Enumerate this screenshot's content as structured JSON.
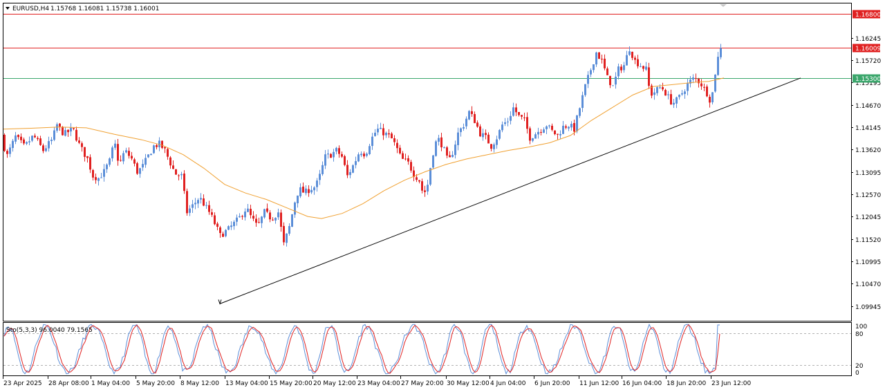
{
  "header": {
    "symbol": "EURUSD,H4",
    "ohlc": "1.15768 1.16081 1.15738 1.16001"
  },
  "chart_data": [
    {
      "type": "candlestick",
      "symbol": "EURUSD",
      "timeframe": "H4",
      "ylim": [
        1.096,
        1.1705
      ],
      "y_ticks": [
        "1.16245",
        "1.15720",
        "1.15195",
        "1.14670",
        "1.14145",
        "1.13620",
        "1.13095",
        "1.12570",
        "1.12045",
        "1.11520",
        "1.10995",
        "1.10470",
        "1.09945"
      ],
      "x_ticks": [
        "23 Apr 2025",
        "28 Apr 08:00",
        "1 May 04:00",
        "5 May 20:00",
        "8 May 12:00",
        "13 May 04:00",
        "15 May 20:00",
        "20 May 12:00",
        "23 May 04:00",
        "27 May 20:00",
        "30 May 12:00",
        "4 Jun 04:00",
        "6 Jun 20:00",
        "11 Jun 12:00",
        "16 Jun 04:00",
        "18 Jun 20:00",
        "23 Jun 12:00"
      ],
      "close_path": [
        [
          0,
          1.1395
        ],
        [
          10,
          1.1348
        ],
        [
          22,
          1.1392
        ],
        [
          35,
          1.1368
        ],
        [
          48,
          1.1395
        ],
        [
          62,
          1.136
        ],
        [
          75,
          1.1385
        ],
        [
          82,
          1.142
        ],
        [
          92,
          1.1398
        ],
        [
          105,
          1.141
        ],
        [
          115,
          1.137
        ],
        [
          126,
          1.134
        ],
        [
          134,
          1.13
        ],
        [
          142,
          1.1295
        ],
        [
          150,
          1.131
        ],
        [
          158,
          1.1335
        ],
        [
          165,
          1.138
        ],
        [
          172,
          1.1325
        ],
        [
          180,
          1.136
        ],
        [
          190,
          1.134
        ],
        [
          198,
          1.131
        ],
        [
          205,
          1.132
        ],
        [
          215,
          1.135
        ],
        [
          222,
          1.137
        ],
        [
          230,
          1.1375
        ],
        [
          238,
          1.136
        ],
        [
          246,
          1.133
        ],
        [
          253,
          1.1305
        ],
        [
          262,
          1.13
        ],
        [
          270,
          1.1215
        ],
        [
          278,
          1.123
        ],
        [
          288,
          1.125
        ],
        [
          296,
          1.123
        ],
        [
          304,
          1.121
        ],
        [
          318,
          1.116
        ],
        [
          330,
          1.1175
        ],
        [
          345,
          1.12
        ],
        [
          356,
          1.1225
        ],
        [
          362,
          1.1205
        ],
        [
          372,
          1.118
        ],
        [
          382,
          1.1215
        ],
        [
          392,
          1.12
        ],
        [
          402,
          1.1215
        ],
        [
          410,
          1.114
        ],
        [
          418,
          1.118
        ],
        [
          426,
          1.124
        ],
        [
          432,
          1.127
        ],
        [
          440,
          1.126
        ],
        [
          448,
          1.127
        ],
        [
          456,
          1.1275
        ],
        [
          462,
          1.13
        ],
        [
          470,
          1.1345
        ],
        [
          478,
          1.135
        ],
        [
          486,
          1.136
        ],
        [
          494,
          1.1345
        ],
        [
          502,
          1.13
        ],
        [
          512,
          1.133
        ],
        [
          520,
          1.136
        ],
        [
          528,
          1.135
        ],
        [
          536,
          1.1385
        ],
        [
          545,
          1.141
        ],
        [
          556,
          1.14
        ],
        [
          565,
          1.139
        ],
        [
          572,
          1.137
        ],
        [
          580,
          1.134
        ],
        [
          590,
          1.133
        ],
        [
          598,
          1.1305
        ],
        [
          606,
          1.129
        ],
        [
          612,
          1.1255
        ],
        [
          618,
          1.128
        ],
        [
          625,
          1.135
        ],
        [
          632,
          1.139
        ],
        [
          640,
          1.137
        ],
        [
          648,
          1.133
        ],
        [
          655,
          1.136
        ],
        [
          662,
          1.14
        ],
        [
          670,
          1.142
        ],
        [
          678,
          1.145
        ],
        [
          686,
          1.143
        ],
        [
          694,
          1.14
        ],
        [
          702,
          1.139
        ],
        [
          710,
          1.137
        ],
        [
          718,
          1.139
        ],
        [
          726,
          1.142
        ],
        [
          734,
          1.143
        ],
        [
          742,
          1.146
        ],
        [
          750,
          1.144
        ],
        [
          758,
          1.143
        ],
        [
          766,
          1.139
        ],
        [
          774,
          1.14
        ],
        [
          782,
          1.141
        ],
        [
          790,
          1.142
        ],
        [
          798,
          1.1405
        ],
        [
          806,
          1.1395
        ],
        [
          814,
          1.1415
        ],
        [
          822,
          1.142
        ],
        [
          830,
          1.141
        ],
        [
          838,
          1.146
        ],
        [
          846,
          1.151
        ],
        [
          854,
          1.155
        ],
        [
          862,
          1.159
        ],
        [
          870,
          1.157
        ],
        [
          878,
          1.153
        ],
        [
          886,
          1.151
        ],
        [
          894,
          1.155
        ],
        [
          902,
          1.156
        ],
        [
          910,
          1.16
        ],
        [
          918,
          1.157
        ],
        [
          926,
          1.156
        ],
        [
          934,
          1.155
        ],
        [
          940,
          1.149
        ],
        [
          948,
          1.15
        ],
        [
          956,
          1.151
        ],
        [
          964,
          1.149
        ],
        [
          972,
          1.147
        ],
        [
          980,
          1.148
        ],
        [
          988,
          1.15
        ],
        [
          996,
          1.152
        ],
        [
          1004,
          1.153
        ],
        [
          1012,
          1.152
        ],
        [
          1018,
          1.1505
        ],
        [
          1024,
          1.149
        ],
        [
          1028,
          1.147
        ],
        [
          1032,
          1.152
        ],
        [
          1036,
          1.1565
        ],
        [
          1040,
          1.159
        ],
        [
          1043,
          1.16
        ]
      ],
      "ma_path": [
        [
          0,
          1.141
        ],
        [
          40,
          1.1412
        ],
        [
          80,
          1.1415
        ],
        [
          120,
          1.1413
        ],
        [
          160,
          1.1398
        ],
        [
          200,
          1.1385
        ],
        [
          230,
          1.1372
        ],
        [
          260,
          1.135
        ],
        [
          290,
          1.1318
        ],
        [
          320,
          1.128
        ],
        [
          350,
          1.126
        ],
        [
          380,
          1.1245
        ],
        [
          410,
          1.1225
        ],
        [
          440,
          1.1205
        ],
        [
          460,
          1.12
        ],
        [
          490,
          1.1212
        ],
        [
          520,
          1.1235
        ],
        [
          550,
          1.1265
        ],
        [
          580,
          1.129
        ],
        [
          610,
          1.131
        ],
        [
          640,
          1.1327
        ],
        [
          670,
          1.134
        ],
        [
          700,
          1.135
        ],
        [
          730,
          1.136
        ],
        [
          760,
          1.1368
        ],
        [
          790,
          1.1378
        ],
        [
          820,
          1.1395
        ],
        [
          850,
          1.143
        ],
        [
          880,
          1.146
        ],
        [
          910,
          1.149
        ],
        [
          940,
          1.151
        ],
        [
          970,
          1.1515
        ],
        [
          1000,
          1.152
        ],
        [
          1020,
          1.1522
        ],
        [
          1042,
          1.153
        ]
      ],
      "horizontal_lines": [
        {
          "price": 1.168,
          "label": "1.16800",
          "color": "#e02020"
        },
        {
          "price": 1.16009,
          "label": "1.16009",
          "color": "#e02020"
        },
        {
          "price": 1.153,
          "label": "1.15300",
          "color": "#3aa66b"
        }
      ],
      "trendline": {
        "from": [
          318,
          1.1
        ],
        "to": [
          1158,
          1.153
        ]
      },
      "colors": {
        "bull": "#5b8ed8",
        "bear": "#e02020",
        "ma": "#f0a030",
        "axis": "#000000"
      }
    },
    {
      "type": "line",
      "indicator_label": "Sto(5,3,3) 96.0040 79.1565",
      "ylim": [
        0,
        100
      ],
      "y_ticks": [
        "100",
        "80",
        "20",
        "0"
      ],
      "levels": [
        80,
        20
      ],
      "main_series_color": "#5b8ed8",
      "signal_series_color": "#e02020"
    }
  ]
}
